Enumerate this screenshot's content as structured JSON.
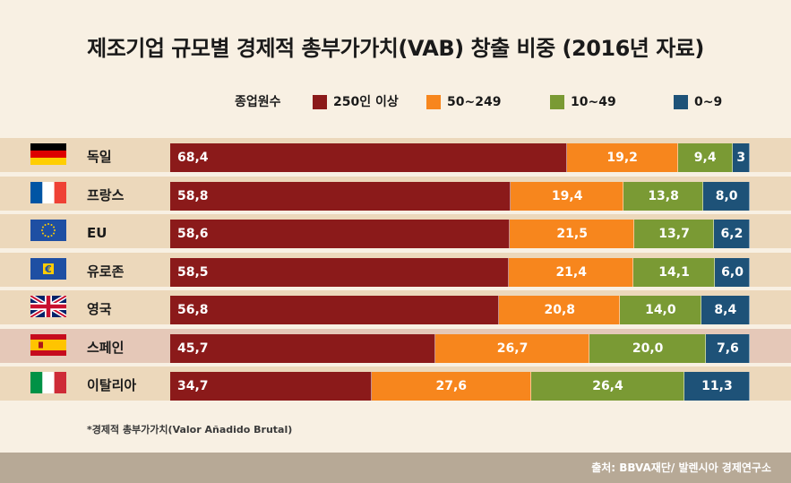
{
  "title": "제조기업 규모별 경제적 총부가가치(VAB) 창출 비중 (2016년 자료)",
  "legend_title": "종업원수",
  "footnote": "*경제적 총부가가치(Valor Añadido Brutal)",
  "source": "출처: BBVA재단/ 발렌시아 경제연구소",
  "colors": {
    "s250": "#8b1a1a",
    "s50": "#f7861d",
    "s10": "#7a9a34",
    "s0": "#1e5278"
  },
  "chart_data": {
    "type": "bar",
    "stacked": true,
    "orientation": "horizontal",
    "categories": [
      "독일",
      "프랑스",
      "EU",
      "유로존",
      "영국",
      "스페인",
      "이탈리아"
    ],
    "series": [
      {
        "name": "250인 이상",
        "values": [
          68.4,
          58.8,
          58.6,
          58.5,
          56.8,
          45.7,
          34.7
        ],
        "labels": [
          "68,4",
          "58,8",
          "58,6",
          "58,5",
          "56,8",
          "45,7",
          "34,7"
        ]
      },
      {
        "name": "50~249",
        "values": [
          19.2,
          19.4,
          21.5,
          21.4,
          20.8,
          26.7,
          27.6
        ],
        "labels": [
          "19,2",
          "19,4",
          "21,5",
          "21,4",
          "20,8",
          "26,7",
          "27,6"
        ]
      },
      {
        "name": "10~49",
        "values": [
          9.4,
          13.8,
          13.7,
          14.1,
          14.0,
          20.0,
          26.4
        ],
        "labels": [
          "9,4",
          "13,8",
          "13,7",
          "14,1",
          "14,0",
          "20,0",
          "26,4"
        ]
      },
      {
        "name": "0~9",
        "values": [
          3,
          8.0,
          6.2,
          6.0,
          8.4,
          7.6,
          11.3
        ],
        "labels": [
          "3",
          "8,0",
          "6,2",
          "6,0",
          "8,4",
          "7,6",
          "11,3"
        ]
      }
    ],
    "flags": [
      "germany-flag-icon",
      "france-flag-icon",
      "eu-flag-icon",
      "eurozone-flag-icon",
      "uk-flag-icon",
      "spain-flag-icon",
      "italy-flag-icon"
    ],
    "highlight_category": "스페인",
    "xlim": [
      0,
      100
    ]
  }
}
